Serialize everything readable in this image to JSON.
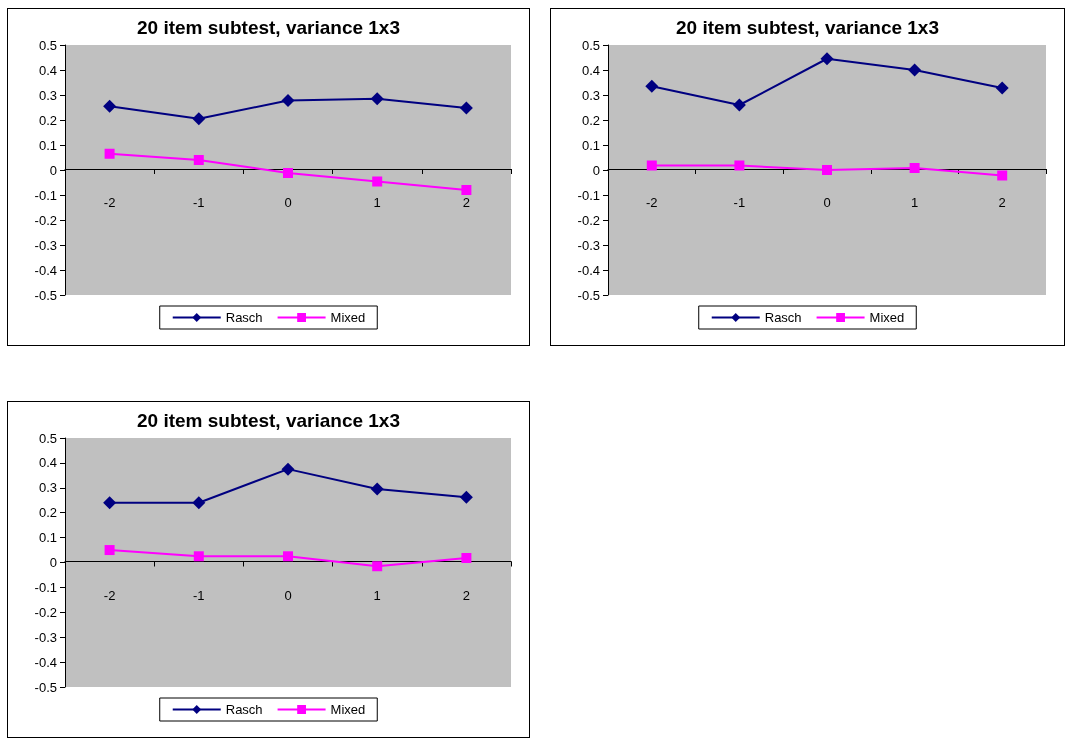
{
  "chart_data": [
    {
      "type": "line",
      "title": "20 item subtest, variance 1x3",
      "categories": [
        "-2",
        "-1",
        "0",
        "1",
        "2"
      ],
      "ylim": [
        -0.5,
        0.5
      ],
      "yticks": [
        -0.5,
        -0.4,
        -0.3,
        -0.2,
        -0.1,
        0,
        0.1,
        0.2,
        0.3,
        0.4,
        0.5
      ],
      "grid": false,
      "legend": "bottom",
      "series": [
        {
          "name": "Rasch",
          "color": "#000080",
          "marker": "diamond",
          "values": [
            0.255,
            0.205,
            0.278,
            0.285,
            0.248
          ]
        },
        {
          "name": "Mixed",
          "color": "#ff00ff",
          "marker": "square",
          "values": [
            0.065,
            0.04,
            -0.012,
            -0.046,
            -0.08
          ]
        }
      ]
    },
    {
      "type": "line",
      "title": "20 item subtest, variance 1x3",
      "categories": [
        "-2",
        "-1",
        "0",
        "1",
        "2"
      ],
      "ylim": [
        -0.5,
        0.5
      ],
      "yticks": [
        -0.5,
        -0.4,
        -0.3,
        -0.2,
        -0.1,
        0,
        0.1,
        0.2,
        0.3,
        0.4,
        0.5
      ],
      "grid": false,
      "legend": "bottom",
      "series": [
        {
          "name": "Rasch",
          "color": "#000080",
          "marker": "diamond",
          "values": [
            0.335,
            0.26,
            0.445,
            0.4,
            0.328
          ]
        },
        {
          "name": "Mixed",
          "color": "#ff00ff",
          "marker": "square",
          "values": [
            0.018,
            0.018,
            0.0,
            0.008,
            -0.022
          ]
        }
      ]
    },
    {
      "type": "line",
      "title": "20 item subtest, variance 1x3",
      "categories": [
        "-2",
        "-1",
        "0",
        "1",
        "2"
      ],
      "ylim": [
        -0.5,
        0.5
      ],
      "yticks": [
        -0.5,
        -0.4,
        -0.3,
        -0.2,
        -0.1,
        0,
        0.1,
        0.2,
        0.3,
        0.4,
        0.5
      ],
      "grid": false,
      "legend": "bottom",
      "series": [
        {
          "name": "Rasch",
          "color": "#000080",
          "marker": "diamond",
          "values": [
            0.24,
            0.24,
            0.375,
            0.295,
            0.262
          ]
        },
        {
          "name": "Mixed",
          "color": "#ff00ff",
          "marker": "square",
          "values": [
            0.05,
            0.025,
            0.025,
            -0.015,
            0.018
          ]
        }
      ]
    }
  ]
}
